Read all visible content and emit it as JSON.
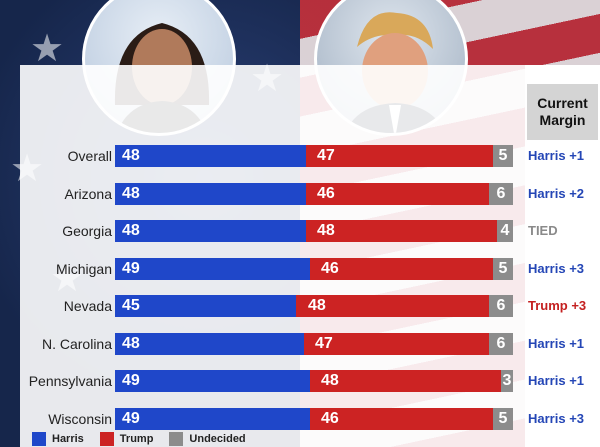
{
  "header": {
    "margin_title": "Current Margin"
  },
  "chart_data": {
    "type": "bar",
    "stacked": true,
    "categories": [
      "Overall",
      "Arizona",
      "Georgia",
      "Michigan",
      "Nevada",
      "N. Carolina",
      "Pennsylvania",
      "Wisconsin"
    ],
    "series": [
      {
        "name": "Harris",
        "values": [
          48,
          48,
          48,
          49,
          45,
          48,
          49,
          49
        ],
        "color": "#1f47c9"
      },
      {
        "name": "Trump",
        "values": [
          47,
          46,
          48,
          46,
          48,
          47,
          48,
          46
        ],
        "color": "#cc2323"
      },
      {
        "name": "Undecided",
        "values": [
          5,
          6,
          4,
          5,
          6,
          6,
          3,
          5
        ],
        "color": "#8c8c8c"
      }
    ],
    "margins": [
      "Harris +1",
      "Harris +2",
      "TIED",
      "Harris +3",
      "Trump +3",
      "Harris +1",
      "Harris +1",
      "Harris +3"
    ],
    "margin_colors": {
      "Harris": "#2446b6",
      "Trump": "#c42020",
      "TIED": "#8a8a8a"
    },
    "legend_position": "bottom-left"
  }
}
